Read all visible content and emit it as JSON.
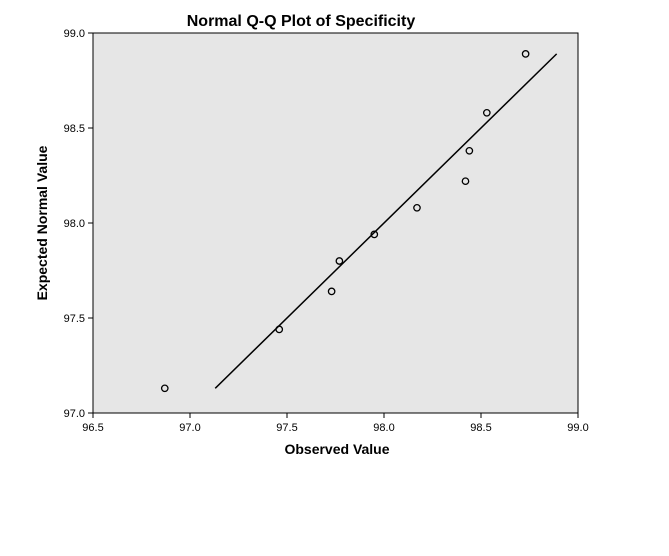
{
  "chart_data": {
    "type": "scatter",
    "title": "Normal Q-Q Plot of Specificity",
    "xlabel": "Observed Value",
    "ylabel": "Expected Normal Value",
    "xlim": [
      96.5,
      99.0
    ],
    "ylim": [
      97.0,
      99.0
    ],
    "xticks": [
      "96.5",
      "97.0",
      "97.5",
      "98.0",
      "98.5",
      "99.0"
    ],
    "yticks": [
      "97.0",
      "97.5",
      "98.0",
      "98.5",
      "99.0"
    ],
    "grid": false,
    "legend": "none",
    "plot_background": "#e6e6e6",
    "point_style": "open-circle",
    "series": [
      {
        "values": [
          {
            "x": 96.87,
            "y": 97.13
          },
          {
            "x": 97.46,
            "y": 97.44
          },
          {
            "x": 97.73,
            "y": 97.64
          },
          {
            "x": 97.77,
            "y": 97.8
          },
          {
            "x": 97.95,
            "y": 97.94
          },
          {
            "x": 98.17,
            "y": 98.08
          },
          {
            "x": 98.42,
            "y": 98.22
          },
          {
            "x": 98.44,
            "y": 98.38
          },
          {
            "x": 98.53,
            "y": 98.58
          },
          {
            "x": 98.73,
            "y": 98.89
          }
        ]
      }
    ],
    "reference_line": {
      "x": [
        97.13,
        98.89
      ],
      "y": [
        97.13,
        98.89
      ]
    }
  }
}
